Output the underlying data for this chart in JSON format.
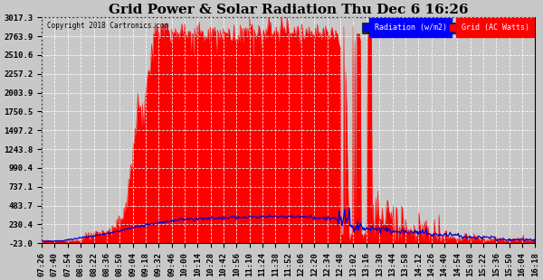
{
  "title": "Grid Power & Solar Radiation Thu Dec 6 16:26",
  "copyright": "Copyright 2018 Cartronics.com",
  "legend_radiation": "Radiation (w/m2)",
  "legend_grid": "Grid (AC Watts)",
  "yticks": [
    -23.0,
    230.4,
    483.7,
    737.1,
    990.4,
    1243.8,
    1497.2,
    1750.5,
    2003.9,
    2257.2,
    2510.6,
    2763.9,
    3017.3
  ],
  "ymin": -23.0,
  "ymax": 3017.3,
  "background_color": "#c8c8c8",
  "plot_bg_color": "#c8c8c8",
  "grid_color": "white",
  "red_fill_color": "#ff0000",
  "blue_line_color": "#0000cc",
  "title_fontsize": 11,
  "tick_fontsize": 6.5,
  "time_labels": [
    "07:26",
    "07:40",
    "07:54",
    "08:08",
    "08:22",
    "08:36",
    "08:50",
    "09:04",
    "09:18",
    "09:32",
    "09:46",
    "10:00",
    "10:14",
    "10:28",
    "10:42",
    "10:56",
    "11:10",
    "11:24",
    "11:38",
    "11:52",
    "12:06",
    "12:20",
    "12:34",
    "12:48",
    "13:02",
    "13:16",
    "13:30",
    "13:44",
    "13:58",
    "14:12",
    "14:26",
    "14:40",
    "14:54",
    "15:08",
    "15:22",
    "15:36",
    "15:50",
    "16:04",
    "16:18"
  ]
}
